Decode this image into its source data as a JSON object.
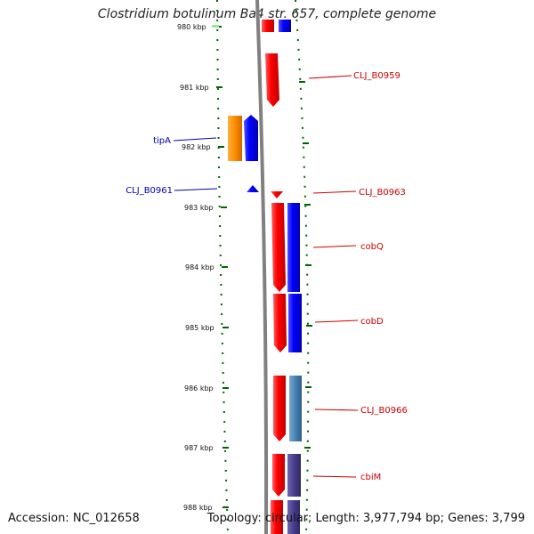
{
  "title": "Clostridium botulinum Ba4 str. 657, complete genome",
  "footer": {
    "accession": "Accession: NC_012658",
    "summary": "Topology: circular; Length: 3,977,794 bp; Genes: 3,799"
  },
  "colors": {
    "forward_gene": "#ff0000",
    "reverse_gene": "#0000ff",
    "orange_gene": "#ff8c00",
    "steel_gene": "#4682b4",
    "purple_gene": "#483d8b",
    "backbone": "#808080",
    "tick": "#006400",
    "label_red": "#cc0000",
    "label_blue": "#0000aa"
  },
  "axis": {
    "unit": "kbp",
    "ticks": [
      "980 kbp",
      "981 kbp",
      "982 kbp",
      "983 kbp",
      "984 kbp",
      "985 kbp",
      "986 kbp",
      "987 kbp",
      "988 kbp"
    ]
  },
  "gene_labels": [
    {
      "name": "CLJ_B0959",
      "strand": "forward"
    },
    {
      "name": "tipA",
      "strand": "reverse"
    },
    {
      "name": "CLJ_B0961",
      "strand": "reverse"
    },
    {
      "name": "CLJ_B0963",
      "strand": "forward"
    },
    {
      "name": "cobQ",
      "strand": "forward"
    },
    {
      "name": "cobD",
      "strand": "forward"
    },
    {
      "name": "CLJ_B0966",
      "strand": "forward"
    },
    {
      "name": "cbiM",
      "strand": "forward"
    }
  ]
}
